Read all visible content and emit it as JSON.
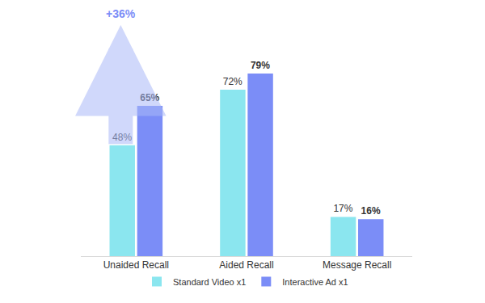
{
  "chart_data": {
    "type": "bar",
    "categories": [
      "Unaided Recall",
      "Aided Recall",
      "Message Recall"
    ],
    "series": [
      {
        "name": "Standard Video x1",
        "color": "#8be6ef",
        "values": [
          48,
          72,
          17
        ],
        "value_labels": [
          "48%",
          "72%",
          "17%"
        ]
      },
      {
        "name": "Interactive Ad x1",
        "color": "#7b8df7",
        "values": [
          65,
          79,
          16
        ],
        "value_labels": [
          "65%",
          "79%",
          "16%"
        ]
      }
    ],
    "ylim": [
      0,
      100
    ],
    "grid": false,
    "data_labels": true,
    "tick_labels": "x",
    "legend": "bottom",
    "annotations": [
      {
        "text": "+36%",
        "category": "Unaided Recall"
      }
    ]
  }
}
